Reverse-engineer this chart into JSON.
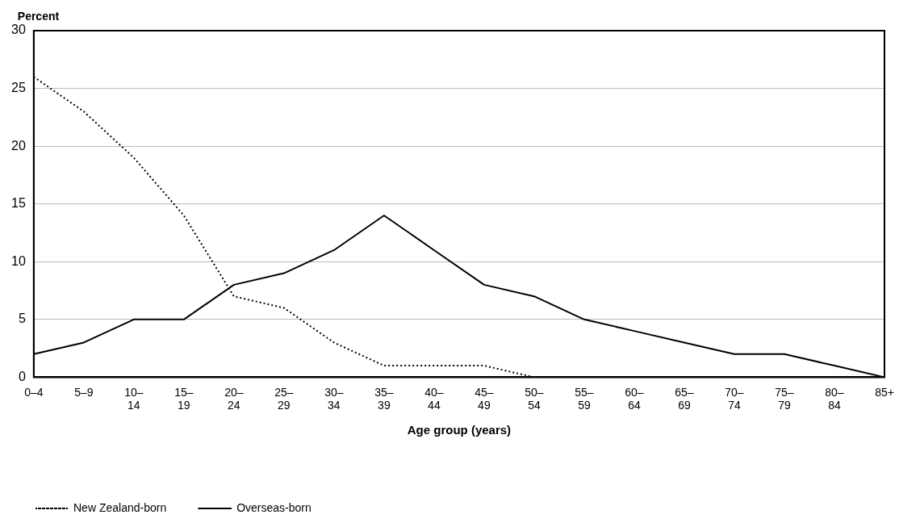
{
  "chart_data": {
    "type": "line",
    "categories": [
      "0–4",
      "5–9",
      "10–\n14",
      "15–\n19",
      "20–\n24",
      "25–\n29",
      "30–\n34",
      "35–\n39",
      "40–\n44",
      "45–\n49",
      "50–\n54",
      "55–\n59",
      "60–\n64",
      "65–\n69",
      "70–\n74",
      "75–\n79",
      "80–\n84",
      "85+"
    ],
    "series": [
      {
        "name": "New Zealand-born",
        "color": "#000000",
        "line_style": "dotted",
        "values": [
          26,
          23,
          19,
          14,
          7,
          6,
          3,
          1,
          1,
          1,
          0,
          0,
          0,
          0,
          0,
          0,
          0,
          0
        ]
      },
      {
        "name": "Overseas-born",
        "color": "#000000",
        "line_style": "solid",
        "values": [
          2,
          3,
          5,
          5,
          8,
          9,
          11,
          14,
          11,
          8,
          7,
          5,
          4,
          3,
          2,
          2,
          1,
          0
        ]
      }
    ],
    "ylabel": "Percent",
    "xlabel": "Age group (years)",
    "ylim": [
      0,
      30
    ],
    "yticks": [
      0,
      5,
      10,
      15,
      20,
      25,
      30
    ],
    "grid": "y",
    "legend": "bottom left",
    "marker": "none"
  }
}
